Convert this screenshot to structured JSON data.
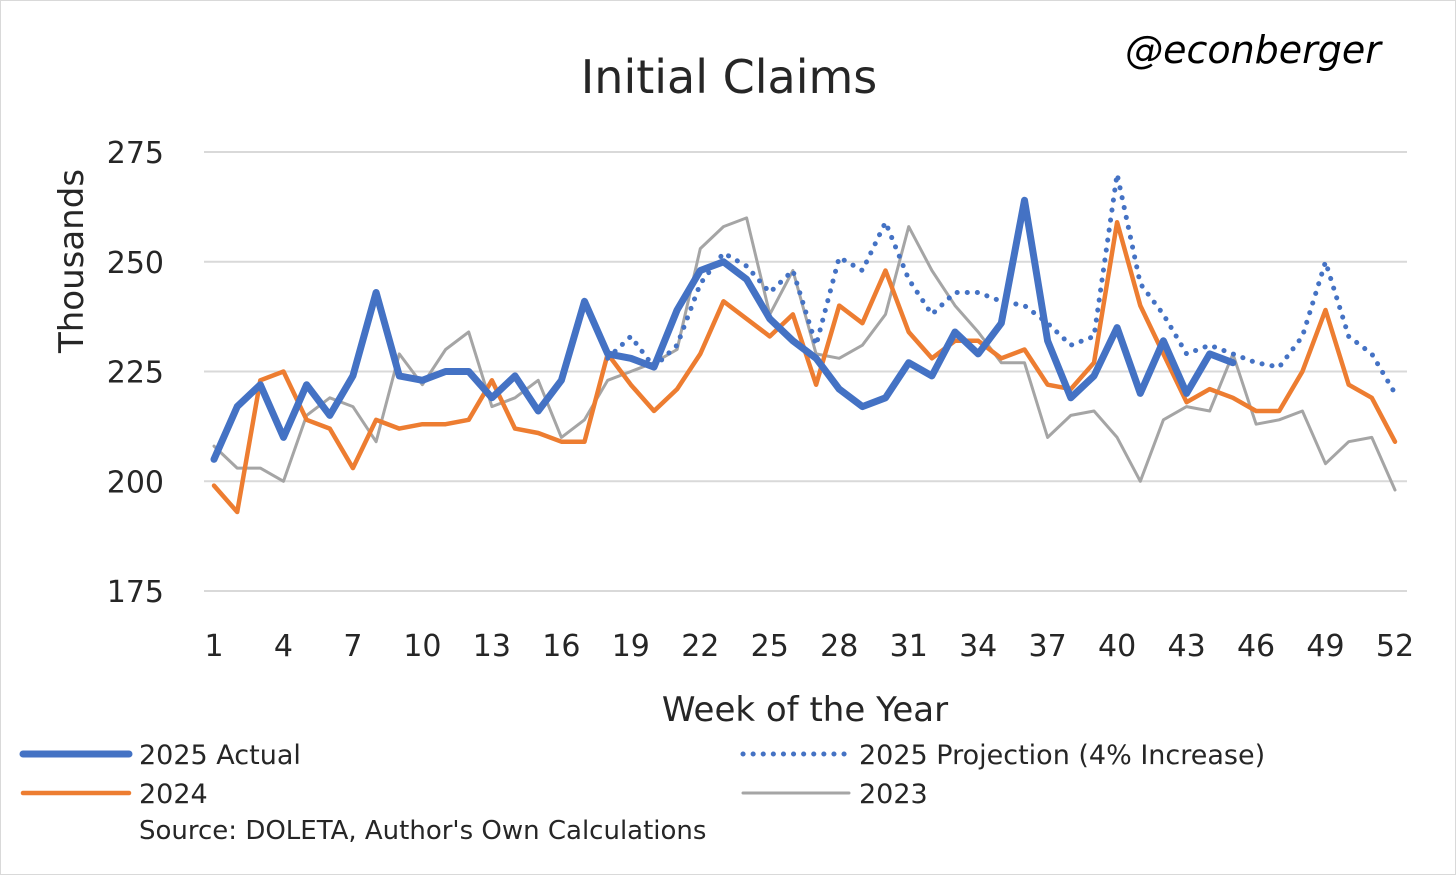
{
  "chart_data": {
    "type": "line",
    "title": "Initial Claims",
    "watermark": "@econberger",
    "xlabel": "Week of the Year",
    "ylabel": "Thousands",
    "source": "Source: DOLETA, Author's Own Calculations",
    "xlim": [
      1,
      52
    ],
    "ylim": [
      175,
      275
    ],
    "x_ticks": [
      1,
      4,
      7,
      10,
      13,
      16,
      19,
      22,
      25,
      28,
      31,
      34,
      37,
      40,
      43,
      46,
      49,
      52
    ],
    "y_ticks": [
      175,
      200,
      225,
      250,
      275
    ],
    "grid": true,
    "legend_position": "bottom",
    "series": [
      {
        "name": "2025 Actual",
        "color": "#4472C4",
        "style": "solid-thick",
        "x": [
          1,
          2,
          3,
          4,
          5,
          6,
          7,
          8,
          9,
          10,
          11,
          12,
          13,
          14,
          15,
          16,
          17,
          18,
          19,
          20,
          21,
          22,
          23,
          24,
          25,
          26,
          27,
          28,
          29,
          30,
          31,
          32,
          33,
          34,
          35,
          36,
          37,
          38,
          39,
          40,
          41,
          42,
          43,
          44,
          45
        ],
        "values": [
          205,
          217,
          222,
          210,
          222,
          215,
          224,
          243,
          224,
          223,
          225,
          225,
          219,
          224,
          216,
          223,
          241,
          229,
          228,
          226,
          239,
          248,
          250,
          246,
          237,
          232,
          228,
          221,
          217,
          219,
          227,
          224,
          234,
          229,
          236,
          264,
          232,
          219,
          224,
          235,
          220,
          232,
          220,
          229,
          227
        ]
      },
      {
        "name": "2025 Projection (4% Increase)",
        "color": "#4472C4",
        "style": "dotted",
        "x": [
          18,
          19,
          20,
          21,
          22,
          23,
          24,
          25,
          26,
          27,
          28,
          29,
          30,
          31,
          32,
          33,
          34,
          35,
          36,
          37,
          38,
          39,
          40,
          41,
          42,
          43,
          44,
          45,
          46,
          47,
          48,
          49,
          50,
          51,
          52
        ],
        "values": [
          228,
          233,
          226,
          231,
          245,
          252,
          249,
          243,
          248,
          231,
          251,
          248,
          259,
          246,
          238,
          243,
          243,
          241,
          240,
          236,
          231,
          233,
          270,
          245,
          238,
          229,
          231,
          229,
          227,
          226,
          233,
          250,
          233,
          229,
          220
        ]
      },
      {
        "name": "2024",
        "color": "#ED7D31",
        "style": "solid",
        "x": [
          1,
          2,
          3,
          4,
          5,
          6,
          7,
          8,
          9,
          10,
          11,
          12,
          13,
          14,
          15,
          16,
          17,
          18,
          19,
          20,
          21,
          22,
          23,
          24,
          25,
          26,
          27,
          28,
          29,
          30,
          31,
          32,
          33,
          34,
          35,
          36,
          37,
          38,
          39,
          40,
          41,
          42,
          43,
          44,
          45,
          46,
          47,
          48,
          49,
          50,
          51,
          52
        ],
        "values": [
          199,
          193,
          223,
          225,
          214,
          212,
          203,
          214,
          212,
          213,
          213,
          214,
          223,
          212,
          211,
          209,
          209,
          229,
          222,
          216,
          221,
          229,
          241,
          237,
          233,
          238,
          222,
          240,
          236,
          248,
          234,
          228,
          232,
          232,
          228,
          230,
          222,
          221,
          227,
          259,
          240,
          229,
          218,
          221,
          219,
          216,
          216,
          225,
          239,
          222,
          219,
          209
        ]
      },
      {
        "name": "2023",
        "color": "#A5A5A5",
        "style": "solid-thin",
        "x": [
          1,
          2,
          3,
          4,
          5,
          6,
          7,
          8,
          9,
          10,
          11,
          12,
          13,
          14,
          15,
          16,
          17,
          18,
          19,
          20,
          21,
          22,
          23,
          24,
          25,
          26,
          27,
          28,
          29,
          30,
          31,
          32,
          33,
          34,
          35,
          36,
          37,
          38,
          39,
          40,
          41,
          42,
          43,
          44,
          45,
          46,
          47,
          48,
          49,
          50,
          51,
          52
        ],
        "values": [
          208,
          203,
          203,
          200,
          215,
          219,
          217,
          209,
          229,
          222,
          230,
          234,
          217,
          219,
          223,
          210,
          214,
          223,
          225,
          227,
          230,
          253,
          258,
          260,
          238,
          248,
          229,
          228,
          231,
          238,
          258,
          248,
          240,
          234,
          227,
          227,
          210,
          215,
          216,
          210,
          200,
          214,
          217,
          216,
          229,
          213,
          214,
          216,
          204,
          209,
          210,
          198
        ]
      }
    ]
  }
}
